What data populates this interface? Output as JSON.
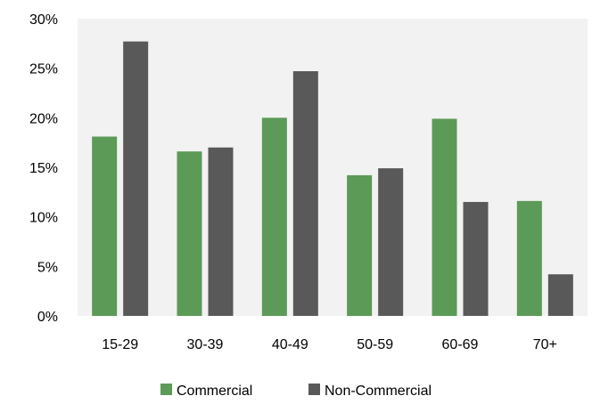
{
  "chart_data": {
    "type": "bar",
    "title": "",
    "xlabel": "",
    "ylabel": "",
    "categories": [
      "15-29",
      "30-39",
      "40-49",
      "50-59",
      "60-69",
      "70+"
    ],
    "series": [
      {
        "name": "Commercial",
        "color": "#5b9a57",
        "values": [
          18.1,
          16.6,
          20.0,
          14.2,
          19.9,
          11.6
        ]
      },
      {
        "name": "Non-Commercial",
        "color": "#595959",
        "values": [
          27.7,
          17.0,
          24.7,
          14.9,
          11.5,
          4.2
        ]
      }
    ],
    "ylim": [
      0,
      30
    ],
    "yticks": [
      0,
      5,
      10,
      15,
      20,
      25,
      30
    ],
    "ytick_labels": [
      "0%",
      "5%",
      "10%",
      "15%",
      "20%",
      "25%",
      "30%"
    ],
    "grid": false,
    "plot_background": "#f2f2f2",
    "legend": {
      "position": "bottom"
    }
  }
}
